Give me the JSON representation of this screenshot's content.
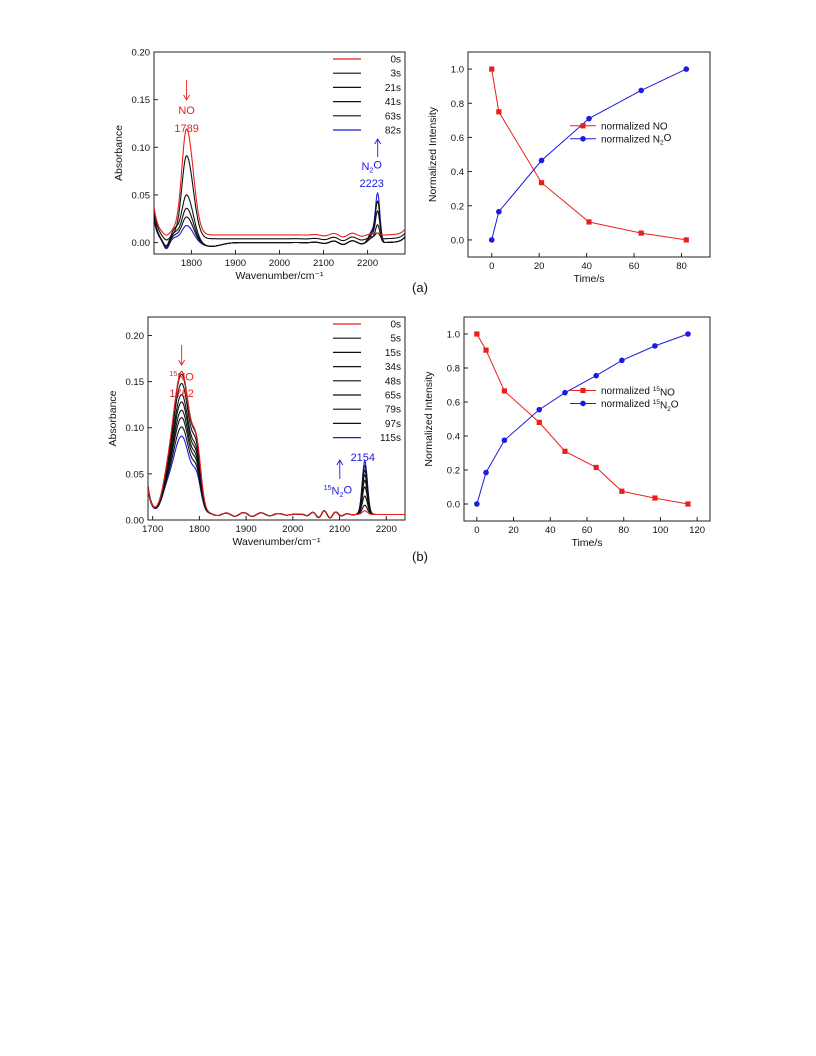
{
  "colors": {
    "red": "#e8201c",
    "blue": "#1c1ce0",
    "black": "#111111"
  },
  "captions": [
    "(a)",
    "(b)"
  ],
  "chart_data": [
    {
      "id": "a_spectra",
      "type": "line",
      "xlabel": "Wavenumber/cm⁻¹",
      "ylabel": "Absorbance",
      "xlim": [
        1715,
        2285
      ],
      "ylim": [
        -0.012,
        0.2
      ],
      "xticks": [
        1800,
        1900,
        2000,
        2100,
        2200
      ],
      "yticks": [
        0.0,
        0.05,
        0.1,
        0.15,
        0.2
      ],
      "ytick_labels": [
        "0.00",
        "0.05",
        "0.10",
        "0.15",
        "0.20"
      ],
      "legend_position": "top-right",
      "annotations": [
        {
          "text": "NO",
          "sub": "",
          "pre": "",
          "value": "1789",
          "color": "red",
          "arrow": "down",
          "x": 1789
        },
        {
          "text": "N",
          "sub": "2",
          "post": "O",
          "value": "2223",
          "color": "blue",
          "arrow": "up",
          "x": 2223
        }
      ],
      "series": [
        {
          "name": "0s",
          "color": "red",
          "bl": 0.008,
          "pk": 0.111,
          "pk2": 0.002,
          "trough": -0.002,
          "left": 0.03
        },
        {
          "name": "3s",
          "color": "black",
          "bl": 0.004,
          "pk": 0.087,
          "pk2": 0.006,
          "trough": -0.003,
          "left": 0.032
        },
        {
          "name": "21s",
          "color": "black",
          "bl": 0.0,
          "pk": 0.05,
          "pk2": 0.018,
          "trough": -0.006,
          "left": 0.03
        },
        {
          "name": "41s",
          "color": "black",
          "bl": 0.0,
          "pk": 0.036,
          "pk2": 0.032,
          "trough": -0.007,
          "left": 0.028
        },
        {
          "name": "63s",
          "color": "black",
          "bl": 0.0,
          "pk": 0.027,
          "pk2": 0.042,
          "trough": -0.007,
          "left": 0.026
        },
        {
          "name": "82s",
          "color": "blue",
          "bl": 0.0,
          "pk": 0.018,
          "pk2": 0.05,
          "trough": -0.008,
          "left": 0.024
        }
      ]
    },
    {
      "id": "a_kinetics",
      "type": "line",
      "xlabel": "Time/s",
      "ylabel": "Normalized Intensity",
      "xlim": [
        -10,
        92
      ],
      "ylim": [
        -0.1,
        1.1
      ],
      "xticks": [
        0,
        20,
        40,
        60,
        80
      ],
      "yticks": [
        0.0,
        0.2,
        0.4,
        0.6,
        0.8,
        1.0
      ],
      "ytick_labels": [
        "0.0",
        "0.2",
        "0.4",
        "0.6",
        "0.8",
        "1.0"
      ],
      "legend_position": "center-right",
      "series": [
        {
          "name": "normalized NO",
          "pre": "",
          "sub": "",
          "post": "",
          "color": "red",
          "marker": "square",
          "x": [
            0,
            3,
            21,
            41,
            63,
            82
          ],
          "y": [
            1.0,
            0.75,
            0.335,
            0.105,
            0.04,
            0.0
          ]
        },
        {
          "name": "normalized N",
          "pre": "",
          "sub": "2",
          "post": "O",
          "color": "blue",
          "marker": "circle",
          "x": [
            0,
            3,
            21,
            41,
            63,
            82
          ],
          "y": [
            0.0,
            0.165,
            0.465,
            0.71,
            0.875,
            1.0
          ]
        }
      ]
    },
    {
      "id": "b_spectra",
      "type": "line",
      "xlabel": "Wavenumber/cm⁻¹",
      "ylabel": "Absorbance",
      "xlim": [
        1690,
        2240
      ],
      "ylim": [
        0.0,
        0.22
      ],
      "xticks": [
        1700,
        1800,
        1900,
        2000,
        2100,
        2200
      ],
      "yticks": [
        0.0,
        0.05,
        0.1,
        0.15,
        0.2
      ],
      "ytick_labels": [
        "0.00",
        "0.05",
        "0.10",
        "0.15",
        "0.20"
      ],
      "legend_position": "top-right",
      "annotations": [
        {
          "pre": "15",
          "text": "NO",
          "sub": "",
          "value": "1762",
          "color": "red",
          "arrow": "down",
          "x": 1762
        },
        {
          "pre": "15",
          "text": "N",
          "sub": "2",
          "post": "O",
          "value": "2154",
          "color": "blue",
          "arrow": "up",
          "x": 2154
        }
      ],
      "series": [
        {
          "name": "0s",
          "color": "red",
          "bl": 0.006,
          "pk": 0.155,
          "pk2": 0.004,
          "left": 0.028
        },
        {
          "name": "5s",
          "color": "black",
          "bl": 0.006,
          "pk": 0.152,
          "pk2": 0.01,
          "left": 0.03
        },
        {
          "name": "15s",
          "color": "black",
          "bl": 0.006,
          "pk": 0.142,
          "pk2": 0.02,
          "left": 0.03
        },
        {
          "name": "34s",
          "color": "black",
          "bl": 0.006,
          "pk": 0.13,
          "pk2": 0.03,
          "left": 0.03
        },
        {
          "name": "48s",
          "color": "black",
          "bl": 0.006,
          "pk": 0.122,
          "pk2": 0.037,
          "left": 0.029
        },
        {
          "name": "65s",
          "color": "black",
          "bl": 0.006,
          "pk": 0.113,
          "pk2": 0.043,
          "left": 0.029
        },
        {
          "name": "79s",
          "color": "black",
          "bl": 0.006,
          "pk": 0.105,
          "pk2": 0.048,
          "left": 0.028
        },
        {
          "name": "97s",
          "color": "black",
          "bl": 0.006,
          "pk": 0.095,
          "pk2": 0.053,
          "left": 0.028
        },
        {
          "name": "115s",
          "color": "blue",
          "bl": 0.006,
          "pk": 0.085,
          "pk2": 0.058,
          "left": 0.027
        }
      ]
    },
    {
      "id": "b_kinetics",
      "type": "line",
      "xlabel": "Time/s",
      "ylabel": "Normalized Intensity",
      "xlim": [
        -7,
        127
      ],
      "ylim": [
        -0.1,
        1.1
      ],
      "xticks": [
        0,
        20,
        40,
        60,
        80,
        100,
        120
      ],
      "yticks": [
        0.0,
        0.2,
        0.4,
        0.6,
        0.8,
        1.0
      ],
      "ytick_labels": [
        "0.0",
        "0.2",
        "0.4",
        "0.6",
        "0.8",
        "1.0"
      ],
      "legend_position": "center-right",
      "series": [
        {
          "name": "normalized NO",
          "pre": "15",
          "sub": "",
          "post": "",
          "color": "red",
          "marker": "square",
          "x": [
            0,
            5,
            15,
            34,
            48,
            65,
            79,
            97,
            115
          ],
          "y": [
            1.0,
            0.905,
            0.665,
            0.48,
            0.31,
            0.215,
            0.075,
            0.035,
            0.0
          ]
        },
        {
          "name": "normalized N",
          "pre": "15",
          "sub": "2",
          "post": "O",
          "color": "blue",
          "marker": "circle",
          "x": [
            0,
            5,
            15,
            34,
            48,
            65,
            79,
            97,
            115
          ],
          "y": [
            0.0,
            0.185,
            0.375,
            0.555,
            0.655,
            0.755,
            0.845,
            0.93,
            1.0
          ]
        }
      ]
    }
  ]
}
